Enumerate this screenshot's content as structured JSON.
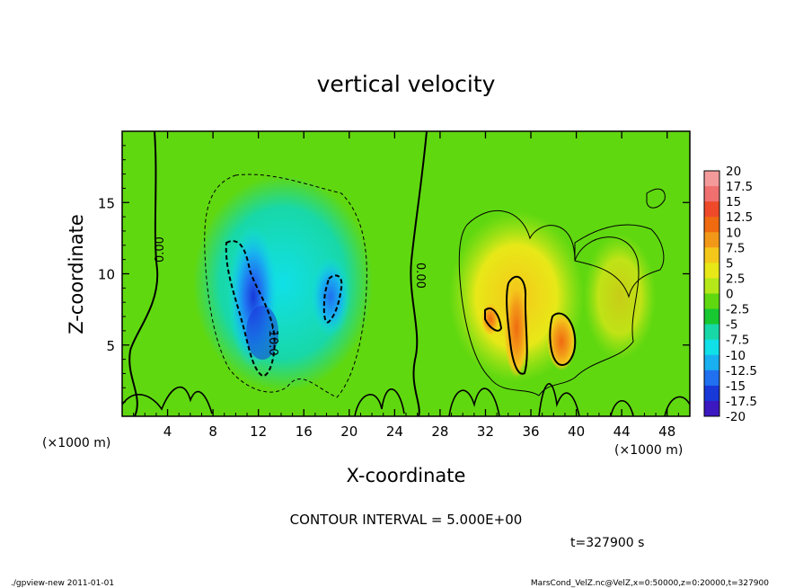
{
  "chart_data": {
    "type": "heatmap",
    "title": "vertical velocity",
    "xlabel": "X-coordinate",
    "ylabel": "Z-coordinate",
    "x_unit_left": "(×1000 m)",
    "x_unit_right": "(×1000 m)",
    "xlim": [
      0,
      50
    ],
    "ylim": [
      0,
      20
    ],
    "x_ticks": [
      4,
      8,
      12,
      16,
      20,
      24,
      28,
      32,
      36,
      40,
      44,
      48
    ],
    "y_ticks": [
      5,
      10,
      15
    ],
    "contour_labels": [
      "0.00",
      "0.00",
      "-10.0"
    ],
    "contour_interval_text": "CONTOUR INTERVAL = 5.000E+00",
    "time_text": "t=327900 s",
    "legend": {
      "position": "right",
      "levels": [
        "20",
        "17.5",
        "15",
        "12.5",
        "10",
        "7.5",
        "5",
        "2.5",
        "0",
        "-2.5",
        "-5",
        "-7.5",
        "-10",
        "-12.5",
        "-15",
        "-17.5",
        "-20"
      ],
      "colors": [
        "#f49a9a",
        "#f07070",
        "#ee4a2a",
        "#f06a10",
        "#f29818",
        "#f4c81a",
        "#e8e818",
        "#b4e818",
        "#60d810",
        "#18c830",
        "#18d8a8",
        "#10e0e8",
        "#18b0f0",
        "#2070f0",
        "#1838d8",
        "#3c18c0",
        "#7018c0"
      ]
    },
    "features": [
      {
        "kind": "downdraft",
        "x": 12,
        "z": 6,
        "min": -15
      },
      {
        "kind": "downdraft",
        "x": 18.5,
        "z": 8.5,
        "min": -10
      },
      {
        "kind": "updraft",
        "x": 34.5,
        "z": 6.5,
        "max": 12.5
      },
      {
        "kind": "updraft",
        "x": 38.5,
        "z": 5.5,
        "max": 12.5
      }
    ]
  },
  "footer": {
    "left": "./gpview-new   2011-01-01",
    "right": "MarsCond_VelZ.nc@VelZ,x=0:50000,z=0:20000,t=327900"
  }
}
